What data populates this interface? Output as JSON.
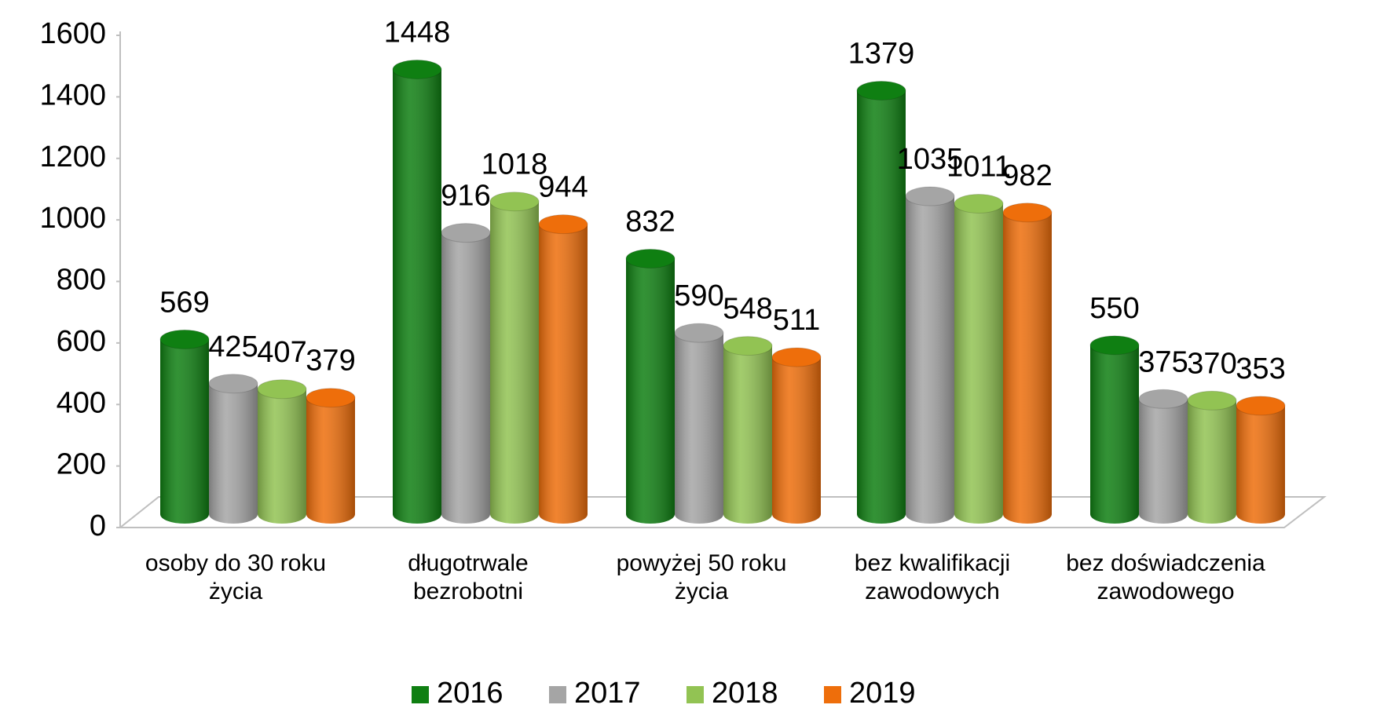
{
  "chart_data": {
    "type": "bar",
    "categories": [
      "osoby do 30 roku życia",
      "długotrwale bezrobotni",
      "powyżej 50 roku życia",
      "bez kwalifikacji zawodowych",
      "bez doświadczenia zawodowego"
    ],
    "series": [
      {
        "name": "2016",
        "color": "#0f7f12",
        "values": [
          569,
          1448,
          832,
          1379,
          550
        ]
      },
      {
        "name": "2017",
        "color": "#a5a5a5",
        "values": [
          425,
          916,
          590,
          1035,
          375
        ]
      },
      {
        "name": "2018",
        "color": "#92c353",
        "values": [
          407,
          1018,
          548,
          1011,
          370
        ]
      },
      {
        "name": "2019",
        "color": "#ee6e0b",
        "values": [
          379,
          944,
          511,
          982,
          353
        ]
      }
    ],
    "ylim": [
      0,
      1600
    ],
    "yticks": [
      0,
      200,
      400,
      600,
      800,
      1000,
      1200,
      1400,
      1600
    ],
    "legend": "bottom"
  }
}
